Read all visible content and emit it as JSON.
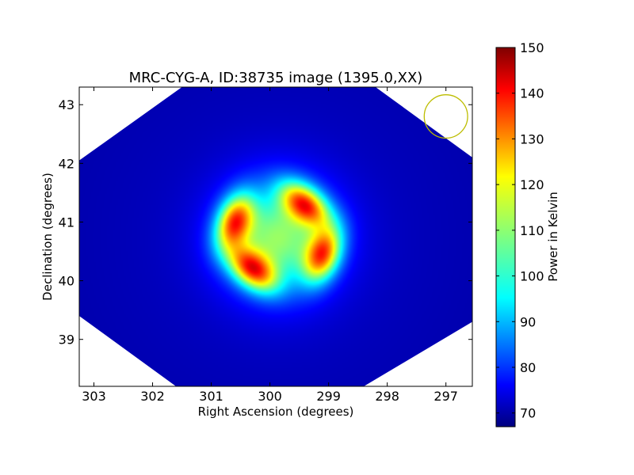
{
  "chart_data": {
    "type": "heatmap",
    "title": "MRC-CYG-A, ID:38735 image (1395.0,XX)",
    "xlabel": "Right Ascension (degrees)",
    "ylabel": "Declination (degrees)",
    "colorbar_label": "Power in Kelvin",
    "xlim": [
      303.25,
      296.55
    ],
    "ylim": [
      38.2,
      43.3
    ],
    "x_ticks": [
      303,
      302,
      301,
      300,
      299,
      298,
      297
    ],
    "y_ticks": [
      39,
      40,
      41,
      42,
      43
    ],
    "x_tick_labels": [
      "303",
      "302",
      "301",
      "300",
      "299",
      "298",
      "297"
    ],
    "y_tick_labels": [
      "39",
      "40",
      "41",
      "42",
      "43"
    ],
    "colorbar_range": [
      67,
      150
    ],
    "colorbar_ticks": [
      70,
      80,
      90,
      100,
      110,
      120,
      130,
      140,
      150
    ],
    "colorbar_tick_labels": [
      "70",
      "80",
      "90",
      "100",
      "110",
      "120",
      "130",
      "140",
      "150"
    ],
    "colormap": "jet",
    "background_level": 69,
    "center_peak_level": 110,
    "lobe_peak_level": 145,
    "source_center": {
      "ra": 299.86,
      "dec": 40.73
    },
    "lobes": [
      {
        "ra": 300.6,
        "dec": 41.0
      },
      {
        "ra": 299.4,
        "dec": 41.3
      },
      {
        "ra": 299.1,
        "dec": 40.45
      },
      {
        "ra": 300.3,
        "dec": 40.2
      }
    ],
    "coverage_corners_deg": [
      {
        "ra": 301.5,
        "dec": 43.3
      },
      {
        "ra": 298.2,
        "dec": 43.3
      },
      {
        "ra": 296.55,
        "dec": 42.1
      },
      {
        "ra": 296.55,
        "dec": 39.3
      },
      {
        "ra": 298.4,
        "dec": 38.2
      },
      {
        "ra": 301.6,
        "dec": 38.2
      },
      {
        "ra": 303.25,
        "dec": 39.4
      },
      {
        "ra": 303.25,
        "dec": 42.05
      },
      {
        "ra": 302.2,
        "dec": 42.8
      }
    ],
    "beam": {
      "ra": 297.0,
      "dec": 42.8,
      "radius_deg": 0.37,
      "color": "#bdbd00"
    },
    "grid": false
  }
}
